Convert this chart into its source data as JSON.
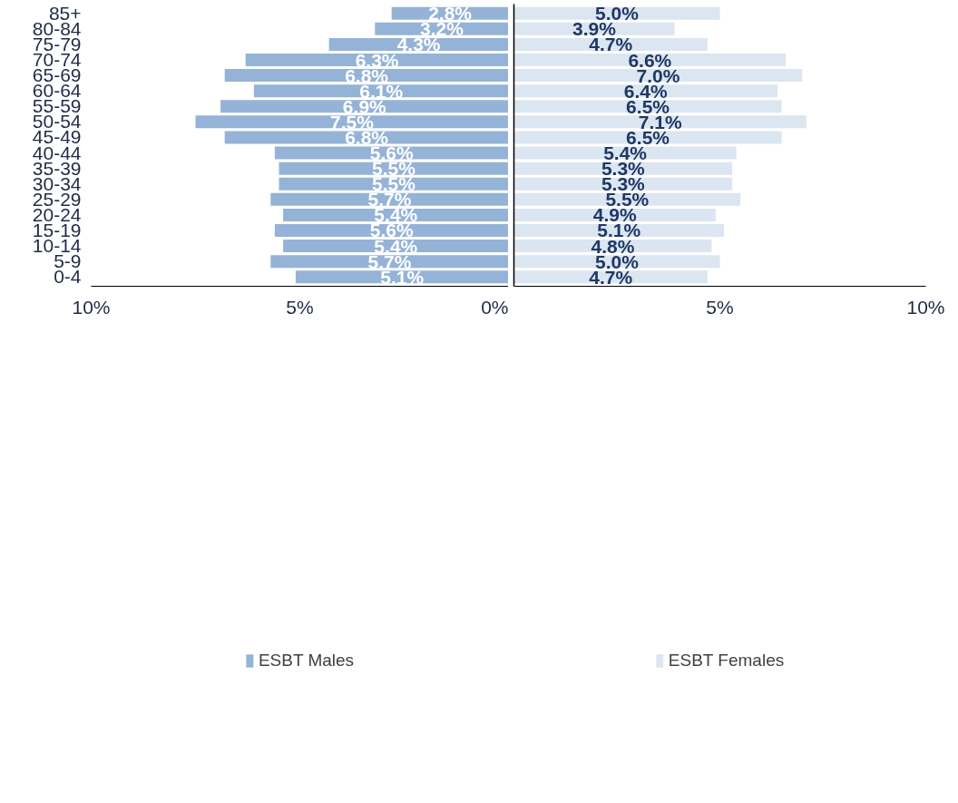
{
  "chart_data": [
    {
      "type": "bar",
      "orientation": "horizontal",
      "categories": [
        "85+",
        "80-84",
        "75-79",
        "70-74",
        "65-69",
        "60-64",
        "55-59",
        "50-54",
        "45-49",
        "40-44",
        "35-39",
        "30-34",
        "25-29",
        "20-24",
        "15-19",
        "10-14",
        "5-9",
        "0-4"
      ],
      "series": [
        {
          "name": "ESBT Males",
          "color": "#95b3d7",
          "values": [
            2.8,
            3.2,
            4.3,
            6.3,
            6.8,
            6.1,
            6.9,
            7.5,
            6.8,
            5.6,
            5.5,
            5.5,
            5.7,
            5.4,
            5.6,
            5.4,
            5.7,
            5.1
          ],
          "value_labels": [
            "2.8%",
            "3.2%",
            "4.3%",
            "6.3%",
            "6.8%",
            "6.1%",
            "6.9%",
            "7.5%",
            "6.8%",
            "5.6%",
            "5.5%",
            "5.5%",
            "5.7%",
            "5.4%",
            "5.6%",
            "5.4%",
            "5.7%",
            "5.1%"
          ]
        }
      ],
      "xlim": [
        10,
        0
      ],
      "xticks": [
        {
          "value": 10,
          "label": "10%"
        },
        {
          "value": 5,
          "label": "5%"
        },
        {
          "value": 0,
          "label": "0%"
        }
      ],
      "grid": false,
      "legend": "bottom"
    },
    {
      "type": "bar",
      "orientation": "horizontal",
      "categories": [
        null,
        null,
        null,
        null,
        null,
        null,
        null,
        null,
        null,
        null,
        null,
        null,
        null,
        null,
        null,
        null,
        null,
        null
      ],
      "series": [
        {
          "name": "ESBT Females",
          "color": "#dce6f1",
          "values": [
            5.0,
            3.9,
            4.7,
            6.6,
            7.0,
            6.4,
            6.5,
            7.1,
            6.5,
            5.4,
            5.3,
            5.3,
            5.5,
            4.9,
            5.1,
            4.8,
            5.0,
            4.7
          ],
          "value_labels": [
            "5.0%",
            "3.9%",
            "4.7%",
            "6.6%",
            "7.0%",
            "6.4%",
            "6.5%",
            "7.1%",
            "6.5%",
            "5.4%",
            "5.3%",
            "5.3%",
            "5.5%",
            "4.9%",
            "5.1%",
            "4.8%",
            "5.0%",
            "4.7%"
          ]
        }
      ],
      "xlim": [
        0,
        10
      ],
      "xticks": [
        {
          "value": 5,
          "label": "5%"
        },
        {
          "value": 10,
          "label": "10%"
        }
      ],
      "tick_labels": "x",
      "grid": false,
      "legend": "bottom"
    }
  ]
}
